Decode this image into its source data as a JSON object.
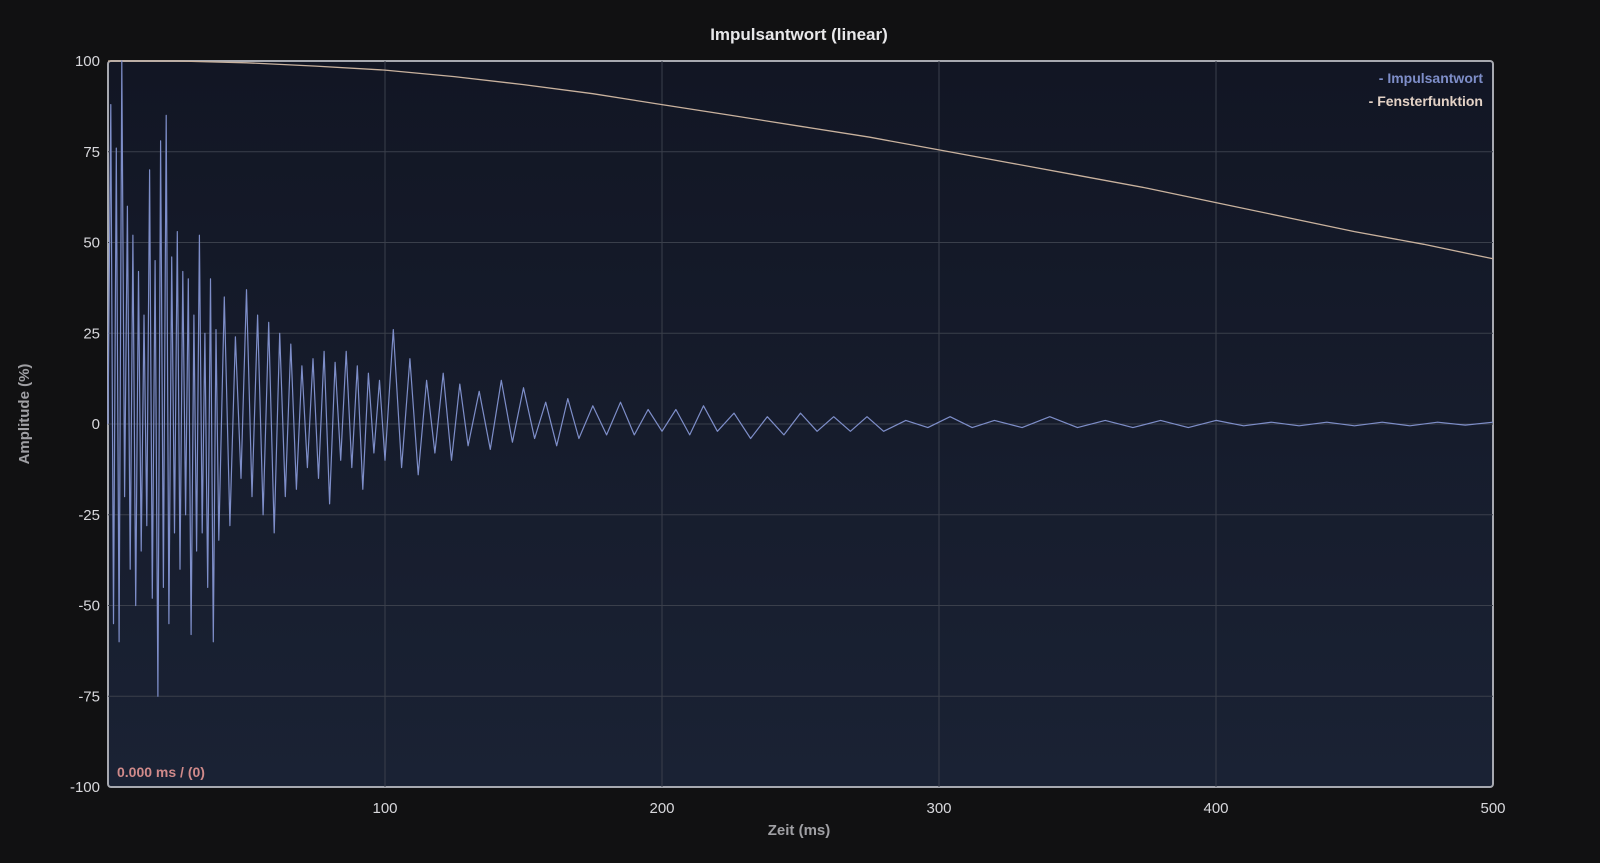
{
  "chart_data": {
    "type": "line",
    "title": "Impulsantwort (linear)",
    "xlabel": "Zeit (ms)",
    "ylabel": "Amplitude (%)",
    "xlim": [
      0,
      500
    ],
    "ylim": [
      -100,
      100
    ],
    "grid": true,
    "legend_position": "top-right",
    "x_ticks": [
      {
        "value": 100,
        "label": "100"
      },
      {
        "value": 200,
        "label": "200"
      },
      {
        "value": 300,
        "label": "300"
      },
      {
        "value": 400,
        "label": "400"
      },
      {
        "value": 500,
        "label": "500"
      }
    ],
    "y_ticks": [
      {
        "value": 100,
        "label": "100"
      },
      {
        "value": 75,
        "label": "75"
      },
      {
        "value": 50,
        "label": "50"
      },
      {
        "value": 25,
        "label": "25"
      },
      {
        "value": 0,
        "label": "0"
      },
      {
        "value": -25,
        "label": "-25"
      },
      {
        "value": -50,
        "label": "-50"
      },
      {
        "value": -75,
        "label": "-75"
      },
      {
        "value": -100,
        "label": "-100"
      }
    ],
    "series": [
      {
        "name": "- Impulsantwort",
        "color": "#7e8ec9",
        "x": [
          0,
          1,
          2,
          3,
          4,
          5,
          6,
          7,
          8,
          9,
          10,
          11,
          12,
          13,
          14,
          15,
          16,
          17,
          18,
          19,
          20,
          21,
          22,
          23,
          24,
          25,
          26,
          27,
          28,
          29,
          30,
          31,
          32,
          33,
          34,
          35,
          36,
          37,
          38,
          39,
          40,
          42,
          44,
          46,
          48,
          50,
          52,
          54,
          56,
          58,
          60,
          62,
          64,
          66,
          68,
          70,
          72,
          74,
          76,
          78,
          80,
          82,
          84,
          86,
          88,
          90,
          92,
          94,
          96,
          98,
          100,
          103,
          106,
          109,
          112,
          115,
          118,
          121,
          124,
          127,
          130,
          134,
          138,
          142,
          146,
          150,
          154,
          158,
          162,
          166,
          170,
          175,
          180,
          185,
          190,
          195,
          200,
          205,
          210,
          215,
          220,
          226,
          232,
          238,
          244,
          250,
          256,
          262,
          268,
          274,
          280,
          288,
          296,
          304,
          312,
          320,
          330,
          340,
          350,
          360,
          370,
          380,
          390,
          400,
          410,
          420,
          430,
          440,
          450,
          460,
          470,
          480,
          490,
          500
        ],
        "y": [
          0,
          88,
          -55,
          76,
          -60,
          100,
          -20,
          60,
          -40,
          52,
          -50,
          42,
          -35,
          30,
          -28,
          70,
          -48,
          45,
          -75,
          78,
          -45,
          85,
          -55,
          46,
          -30,
          53,
          -40,
          42,
          -25,
          40,
          -58,
          30,
          -35,
          52,
          -30,
          25,
          -45,
          40,
          -60,
          26,
          -32,
          35,
          -28,
          24,
          -15,
          37,
          -20,
          30,
          -25,
          28,
          -30,
          25,
          -20,
          22,
          -18,
          16,
          -12,
          18,
          -15,
          20,
          -22,
          17,
          -10,
          20,
          -12,
          16,
          -18,
          14,
          -8,
          12,
          -10,
          26,
          -12,
          18,
          -14,
          12,
          -8,
          14,
          -10,
          11,
          -6,
          9,
          -7,
          12,
          -5,
          10,
          -4,
          6,
          -6,
          7,
          -4,
          5,
          -3,
          6,
          -3,
          4,
          -2,
          4,
          -3,
          5,
          -2,
          3,
          -4,
          2,
          -3,
          3,
          -2,
          2,
          -2,
          2,
          -2,
          1,
          -1,
          2,
          -1,
          1,
          -1,
          2,
          -1,
          1,
          -1,
          1,
          -1,
          1,
          -0.5,
          0.5,
          -0.5,
          0.5,
          -0.5,
          0.5,
          -0.5,
          0.5,
          -0.3,
          0.5
        ]
      },
      {
        "name": "- Fensterfunktion",
        "color": "#c9b29e",
        "x": [
          0,
          25,
          50,
          75,
          100,
          125,
          150,
          175,
          200,
          225,
          250,
          275,
          300,
          325,
          350,
          375,
          400,
          425,
          450,
          475,
          500
        ],
        "y": [
          100,
          100,
          99.5,
          98.6,
          97.5,
          95.7,
          93.5,
          91,
          88,
          85,
          82,
          79,
          75.5,
          72,
          68.5,
          65,
          61,
          57,
          53,
          49.5,
          45.5
        ]
      }
    ],
    "readout": "0.000 ms / (0)"
  }
}
